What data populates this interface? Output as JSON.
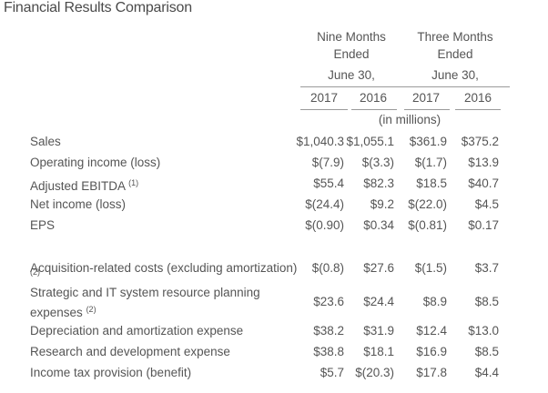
{
  "title": "Financial Results Comparison",
  "header": {
    "group1_line1": "Nine Months",
    "group1_line2": "Ended",
    "group1_line3": "June 30,",
    "group2_line1": "Three Months",
    "group2_line2": "Ended",
    "group2_line3": "June 30,",
    "years": [
      "2017",
      "2016",
      "2017",
      "2016"
    ],
    "units": "(in millions)"
  },
  "rows": [
    {
      "label": "Sales",
      "footnote": "",
      "values": [
        "$1,040.3",
        "$1,055.1",
        "$361.9",
        "$375.2"
      ]
    },
    {
      "label": "Operating income (loss)",
      "footnote": "",
      "values": [
        "$(7.9)",
        "$(3.3)",
        "$(1.7)",
        "$13.9"
      ]
    },
    {
      "label": "Adjusted EBITDA",
      "footnote": "(1)",
      "values": [
        "$55.4",
        "$82.3",
        "$18.5",
        "$40.7"
      ]
    },
    {
      "label": "Net income (loss)",
      "footnote": "",
      "values": [
        "$(24.4)",
        "$9.2",
        "$(22.0)",
        "$4.5"
      ]
    },
    {
      "label": "EPS",
      "footnote": "",
      "values": [
        "$(0.90)",
        "$0.34",
        "$(0.81)",
        "$0.17"
      ]
    },
    {
      "label": "Acquisition-related costs (excluding amortization)",
      "footnote": "(2)",
      "values": [
        "$(0.8)",
        "$27.6",
        "$(1.5)",
        "$3.7"
      ]
    },
    {
      "label": "Strategic and IT system resource planning",
      "label2": "expenses",
      "footnote": "(2)",
      "values": [
        "$23.6",
        "$24.4",
        "$8.9",
        "$8.5"
      ]
    },
    {
      "label": "Depreciation and amortization expense",
      "footnote": "",
      "values": [
        "$38.2",
        "$31.9",
        "$12.4",
        "$13.0"
      ]
    },
    {
      "label": "Research and development expense",
      "footnote": "",
      "values": [
        "$38.8",
        "$18.1",
        "$16.9",
        "$8.5"
      ]
    },
    {
      "label": "Income tax provision (benefit)",
      "footnote": "",
      "values": [
        "$5.7",
        "$(20.3)",
        "$17.8",
        "$4.4"
      ]
    }
  ]
}
